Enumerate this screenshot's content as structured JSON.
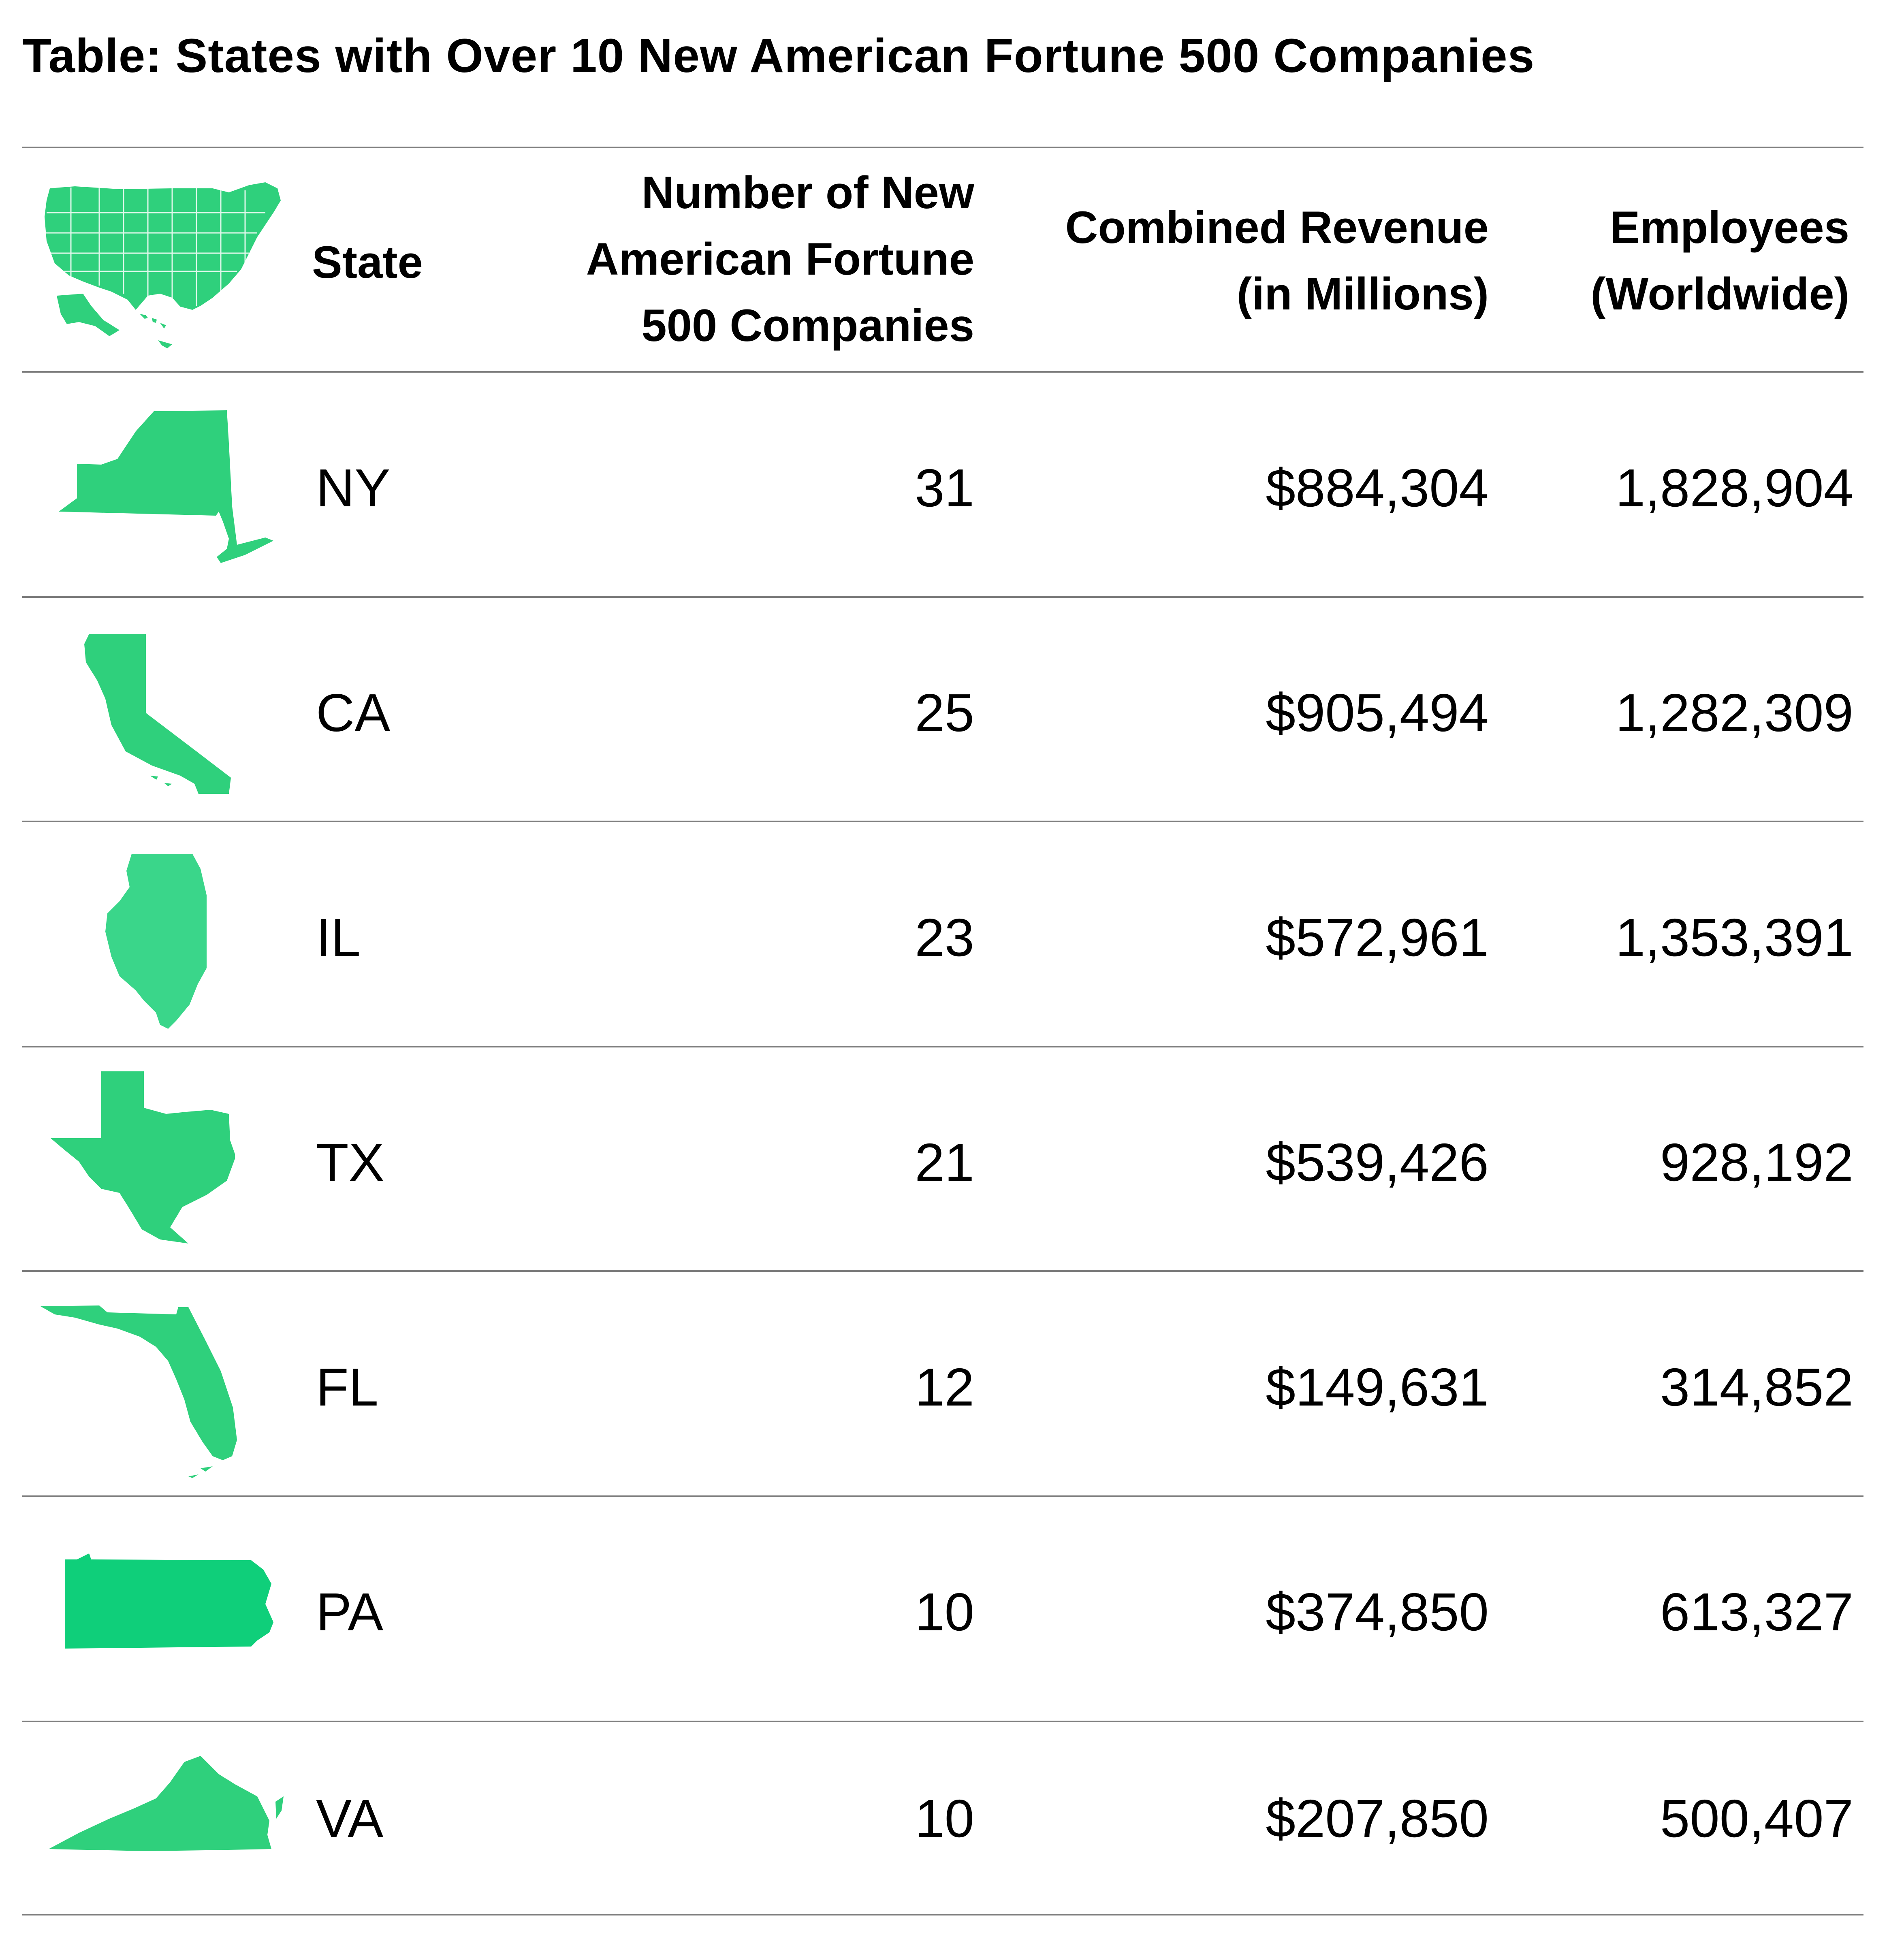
{
  "title": "Table: States with Over 10 New American Fortune 500 Companies",
  "colors": {
    "map_fill": "#2fd07c",
    "rule": "#7d7d7d",
    "text": "#000000"
  },
  "header": {
    "icon": "usa-map-icon",
    "state": "State",
    "count": [
      "Number of New",
      "American  Fortune",
      "500 Companies"
    ],
    "revenue": [
      "Combined Revenue",
      "(in Millions)"
    ],
    "employees": [
      "Employees",
      "(Worldwide)"
    ]
  },
  "rows": [
    {
      "icon": "new-york-map-icon",
      "state": "NY",
      "count": "31",
      "revenue": "$884,304",
      "employees": "1,828,904"
    },
    {
      "icon": "california-map-icon",
      "state": "CA",
      "count": "25",
      "revenue": "$905,494",
      "employees": "1,282,309"
    },
    {
      "icon": "illinois-map-icon",
      "state": "IL",
      "count": "23",
      "revenue": "$572,961",
      "employees": "1,353,391"
    },
    {
      "icon": "texas-map-icon",
      "state": "TX",
      "count": "21",
      "revenue": "$539,426",
      "employees": "928,192"
    },
    {
      "icon": "florida-map-icon",
      "state": "FL",
      "count": "12",
      "revenue": "$149,631",
      "employees": "314,852"
    },
    {
      "icon": "pennsylvania-map-icon",
      "state": "PA",
      "count": "10",
      "revenue": "$374,850",
      "employees": "613,327"
    },
    {
      "icon": "virginia-map-icon",
      "state": "VA",
      "count": "10",
      "revenue": "$207,850",
      "employees": "500,407"
    }
  ],
  "chart_data": {
    "type": "table",
    "title": "Table: States with Over 10 New American Fortune 500 Companies",
    "columns": [
      "State",
      "Number of New American  Fortune 500 Companies",
      "Combined Revenue (in Millions)",
      "Employees (Worldwide)"
    ],
    "rows": [
      [
        "NY",
        31,
        884304,
        1828904
      ],
      [
        "CA",
        25,
        905494,
        1282309
      ],
      [
        "IL",
        23,
        572961,
        1353391
      ],
      [
        "TX",
        21,
        539426,
        928192
      ],
      [
        "FL",
        12,
        149631,
        314852
      ],
      [
        "PA",
        10,
        374850,
        613327
      ],
      [
        "VA",
        10,
        207850,
        500407
      ]
    ]
  }
}
